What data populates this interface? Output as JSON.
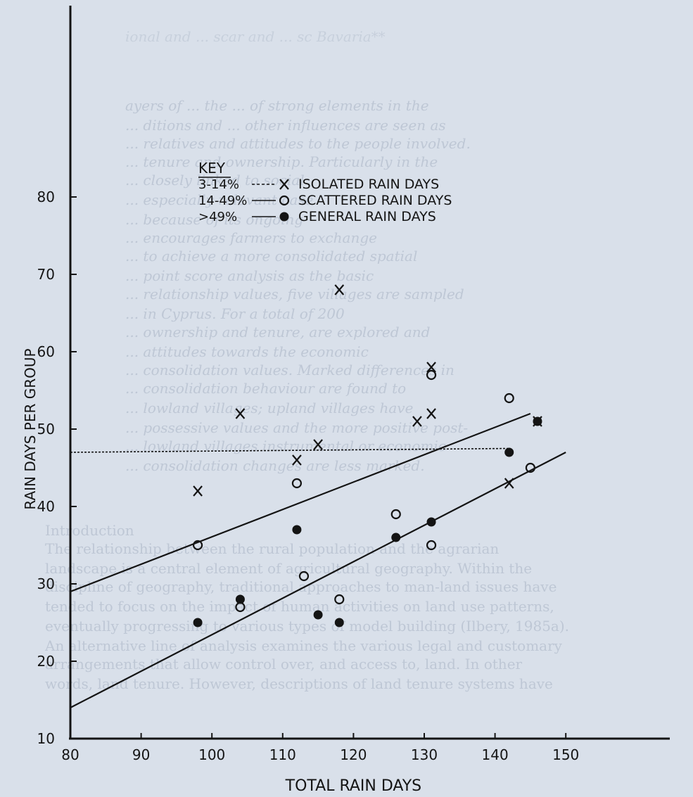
{
  "chart_data": {
    "type": "scatter",
    "xlabel": "TOTAL RAIN DAYS",
    "ylabel": "RAIN DAYS PER GROUP",
    "xlim": [
      80,
      152
    ],
    "ylim": [
      10,
      88
    ],
    "x_ticks": [
      80,
      90,
      100,
      110,
      120,
      130,
      140,
      150
    ],
    "y_ticks": [
      10,
      20,
      30,
      40,
      50,
      60,
      70,
      80
    ],
    "grid": false,
    "legend_title": "KEY",
    "legend_placement": "top-center",
    "series": [
      {
        "name": "ISOLATED RAIN DAYS",
        "range_label": "3-14%",
        "marker": "x",
        "points": [
          [
            98,
            42
          ],
          [
            104,
            52
          ],
          [
            112,
            46
          ],
          [
            115,
            48
          ],
          [
            118,
            68
          ],
          [
            129,
            51
          ],
          [
            131,
            58
          ],
          [
            131,
            52
          ],
          [
            142,
            43
          ],
          [
            146,
            51
          ]
        ]
      },
      {
        "name": "SCATTERED RAIN DAYS",
        "range_label": "14-49%",
        "marker": "o",
        "points": [
          [
            98,
            35
          ],
          [
            104,
            27
          ],
          [
            112,
            43
          ],
          [
            113,
            31
          ],
          [
            118,
            28
          ],
          [
            126,
            39
          ],
          [
            131,
            57
          ],
          [
            131,
            35
          ],
          [
            142,
            54
          ],
          [
            145,
            45
          ]
        ]
      },
      {
        "name": "GENERAL RAIN DAYS",
        "range_label": ">49%",
        "marker": "dot",
        "points": [
          [
            98,
            25
          ],
          [
            104,
            28
          ],
          [
            112,
            37
          ],
          [
            115,
            26
          ],
          [
            118,
            25
          ],
          [
            126,
            36
          ],
          [
            131,
            38
          ],
          [
            142,
            47
          ],
          [
            146,
            51
          ]
        ]
      }
    ],
    "lines": [
      {
        "style": "dashed",
        "x1": 80,
        "y1": 47,
        "x2": 142,
        "y2": 47.5
      },
      {
        "style": "solid",
        "x1": 80,
        "y1": 29,
        "x2": 145,
        "y2": 52
      },
      {
        "style": "solid",
        "x1": 80,
        "y1": 14,
        "x2": 150,
        "y2": 47
      }
    ]
  },
  "background_text": [
    "ional and ... scar and ... sc Bavaria**",
    "ayers of ... the ... of strong elements in the",
    "... ditions and ... other influences are seen as",
    "... relatives and attitudes to the people involved.",
    "... tenure and ownership. Particularly in the",
    "... closely linked to social",
    "... especially relevant case",
    "... because of its ongoing",
    "... encourages farmers to exchange",
    "... to achieve a more consolidated spatial",
    "... point score analysis as the basic",
    "... relationship values, five villages are sampled",
    "... in Cyprus. For a total of 200",
    "... ownership and tenure, are explored and",
    "... attitudes towards the economic",
    "... consolidation values. Marked differences in",
    "... consolidation behaviour are found to",
    "... lowland villages; upland villages have",
    "... possessive values and the more positive post-",
    "... lowland villages instrumental or economic",
    "... consolidation changes are less marked.",
    "Introduction",
    "The relationship between the rural population and the agrarian",
    "landscape is a central element of agricultural geography. Within the",
    "discipline of geography, traditional approaches to man-land issues have",
    "tended to focus on the impact of human activities on land use patterns,",
    "eventually progressing to various types of model building (Ilbery, 1985a).",
    "An alternative line of analysis examines the various legal and customary",
    "arrangements that allow control over, and access to, land. In other",
    "words, land tenure. However, descriptions of land tenure systems have"
  ]
}
